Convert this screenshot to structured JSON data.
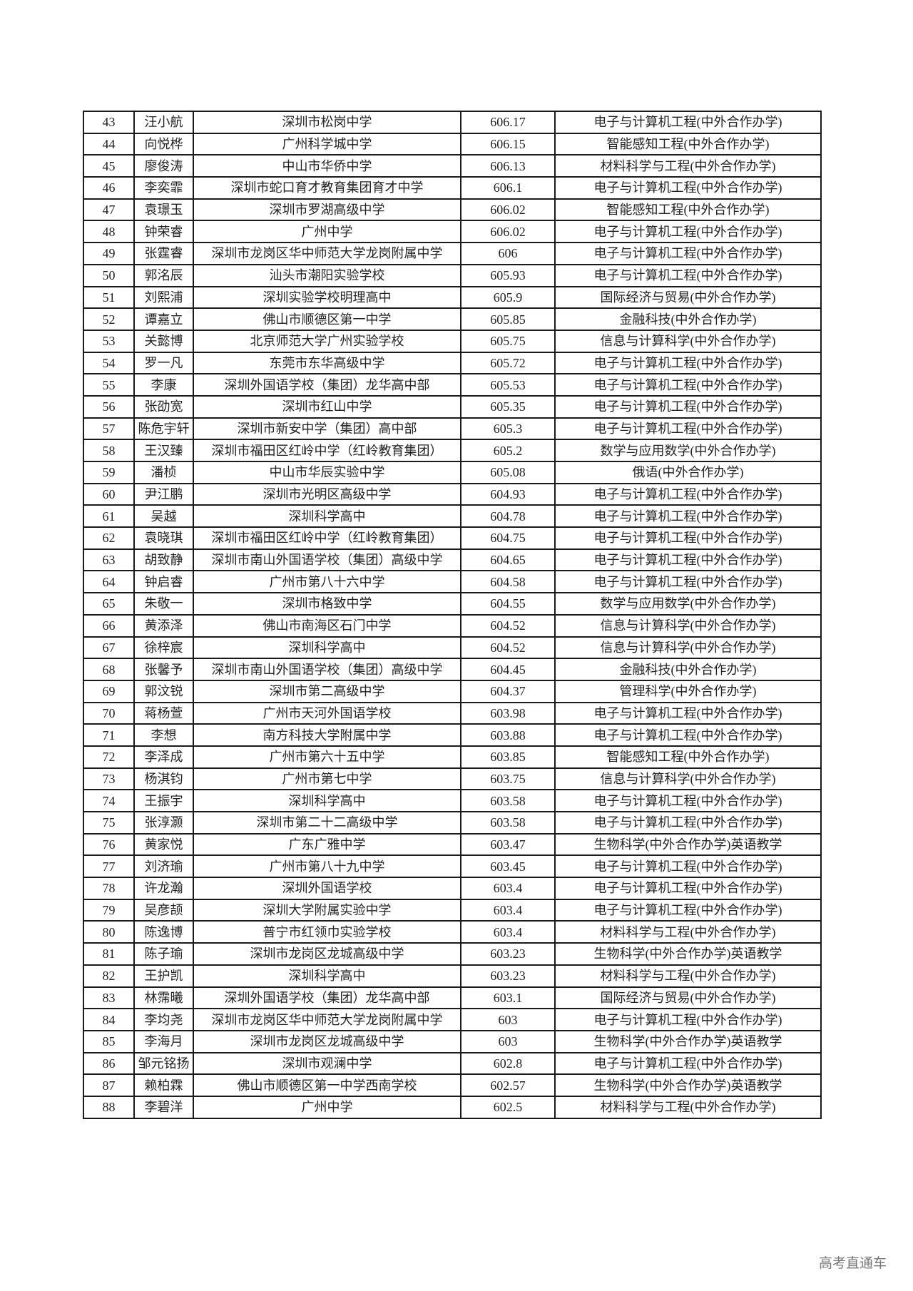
{
  "rows": [
    [
      "43",
      "汪小航",
      "深圳市松岗中学",
      "606.17",
      "电子与计算机工程(中外合作办学)"
    ],
    [
      "44",
      "向悦桦",
      "广州科学城中学",
      "606.15",
      "智能感知工程(中外合作办学)"
    ],
    [
      "45",
      "廖俊涛",
      "中山市华侨中学",
      "606.13",
      "材料科学与工程(中外合作办学)"
    ],
    [
      "46",
      "李奕霏",
      "深圳市蛇口育才教育集团育才中学",
      "606.1",
      "电子与计算机工程(中外合作办学)"
    ],
    [
      "47",
      "袁璟玉",
      "深圳市罗湖高级中学",
      "606.02",
      "智能感知工程(中外合作办学)"
    ],
    [
      "48",
      "钟荣睿",
      "广州中学",
      "606.02",
      "电子与计算机工程(中外合作办学)"
    ],
    [
      "49",
      "张霆睿",
      "深圳市龙岗区华中师范大学龙岗附属中学",
      "606",
      "电子与计算机工程(中外合作办学)"
    ],
    [
      "50",
      "郭洺辰",
      "汕头市潮阳实验学校",
      "605.93",
      "电子与计算机工程(中外合作办学)"
    ],
    [
      "51",
      "刘熙浦",
      "深圳实验学校明理高中",
      "605.9",
      "国际经济与贸易(中外合作办学)"
    ],
    [
      "52",
      "谭嘉立",
      "佛山市顺德区第一中学",
      "605.85",
      "金融科技(中外合作办学)"
    ],
    [
      "53",
      "关懿博",
      "北京师范大学广州实验学校",
      "605.75",
      "信息与计算科学(中外合作办学)"
    ],
    [
      "54",
      "罗一凡",
      "东莞市东华高级中学",
      "605.72",
      "电子与计算机工程(中外合作办学)"
    ],
    [
      "55",
      "李康",
      "深圳外国语学校（集团）龙华高中部",
      "605.53",
      "电子与计算机工程(中外合作办学)"
    ],
    [
      "56",
      "张劭宽",
      "深圳市红山中学",
      "605.35",
      "电子与计算机工程(中外合作办学)"
    ],
    [
      "57",
      "陈危宇轩",
      "深圳市新安中学（集团）高中部",
      "605.3",
      "电子与计算机工程(中外合作办学)"
    ],
    [
      "58",
      "王汉臻",
      "深圳市福田区红岭中学（红岭教育集团）",
      "605.2",
      "数学与应用数学(中外合作办学)"
    ],
    [
      "59",
      "潘桢",
      "中山市华辰实验中学",
      "605.08",
      "俄语(中外合作办学)"
    ],
    [
      "60",
      "尹江鹏",
      "深圳市光明区高级中学",
      "604.93",
      "电子与计算机工程(中外合作办学)"
    ],
    [
      "61",
      "吴越",
      "深圳科学高中",
      "604.78",
      "电子与计算机工程(中外合作办学)"
    ],
    [
      "62",
      "袁晓琪",
      "深圳市福田区红岭中学（红岭教育集团）",
      "604.75",
      "电子与计算机工程(中外合作办学)"
    ],
    [
      "63",
      "胡致静",
      "深圳市南山外国语学校（集团）高级中学",
      "604.65",
      "电子与计算机工程(中外合作办学)"
    ],
    [
      "64",
      "钟启睿",
      "广州市第八十六中学",
      "604.58",
      "电子与计算机工程(中外合作办学)"
    ],
    [
      "65",
      "朱敬一",
      "深圳市格致中学",
      "604.55",
      "数学与应用数学(中外合作办学)"
    ],
    [
      "66",
      "黄添泽",
      "佛山市南海区石门中学",
      "604.52",
      "信息与计算科学(中外合作办学)"
    ],
    [
      "67",
      "徐梓宸",
      "深圳科学高中",
      "604.52",
      "信息与计算科学(中外合作办学)"
    ],
    [
      "68",
      "张馨予",
      "深圳市南山外国语学校（集团）高级中学",
      "604.45",
      "金融科技(中外合作办学)"
    ],
    [
      "69",
      "郭汶锐",
      "深圳市第二高级中学",
      "604.37",
      "管理科学(中外合作办学)"
    ],
    [
      "70",
      "蒋杨萱",
      "广州市天河外国语学校",
      "603.98",
      "电子与计算机工程(中外合作办学)"
    ],
    [
      "71",
      "李想",
      "南方科技大学附属中学",
      "603.88",
      "电子与计算机工程(中外合作办学)"
    ],
    [
      "72",
      "李泽成",
      "广州市第六十五中学",
      "603.85",
      "智能感知工程(中外合作办学)"
    ],
    [
      "73",
      "杨淇钧",
      "广州市第七中学",
      "603.75",
      "信息与计算科学(中外合作办学)"
    ],
    [
      "74",
      "王振宇",
      "深圳科学高中",
      "603.58",
      "电子与计算机工程(中外合作办学)"
    ],
    [
      "75",
      "张淳灏",
      "深圳市第二十二高级中学",
      "603.58",
      "电子与计算机工程(中外合作办学)"
    ],
    [
      "76",
      "黄家悦",
      "广东广雅中学",
      "603.47",
      "生物科学(中外合作办学)英语教学"
    ],
    [
      "77",
      "刘济瑜",
      "广州市第八十九中学",
      "603.45",
      "电子与计算机工程(中外合作办学)"
    ],
    [
      "78",
      "许龙瀚",
      "深圳外国语学校",
      "603.4",
      "电子与计算机工程(中外合作办学)"
    ],
    [
      "79",
      "吴彦颉",
      "深圳大学附属实验中学",
      "603.4",
      "电子与计算机工程(中外合作办学)"
    ],
    [
      "80",
      "陈逸博",
      "普宁市红领巾实验学校",
      "603.4",
      "材料科学与工程(中外合作办学)"
    ],
    [
      "81",
      "陈子瑜",
      "深圳市龙岗区龙城高级中学",
      "603.23",
      "生物科学(中外合作办学)英语教学"
    ],
    [
      "82",
      "王护凯",
      "深圳科学高中",
      "603.23",
      "材料科学与工程(中外合作办学)"
    ],
    [
      "83",
      "林霈曦",
      "深圳外国语学校（集团）龙华高中部",
      "603.1",
      "国际经济与贸易(中外合作办学)"
    ],
    [
      "84",
      "李均尧",
      "深圳市龙岗区华中师范大学龙岗附属中学",
      "603",
      "电子与计算机工程(中外合作办学)"
    ],
    [
      "85",
      "李海月",
      "深圳市龙岗区龙城高级中学",
      "603",
      "生物科学(中外合作办学)英语教学"
    ],
    [
      "86",
      "邹元铭扬",
      "深圳市观澜中学",
      "602.8",
      "电子与计算机工程(中外合作办学)"
    ],
    [
      "87",
      "赖柏霖",
      "佛山市顺德区第一中学西南学校",
      "602.57",
      "生物科学(中外合作办学)英语教学"
    ],
    [
      "88",
      "李碧洋",
      "广州中学",
      "602.5",
      "材料科学与工程(中外合作办学)"
    ]
  ],
  "watermark": "高考直通车"
}
